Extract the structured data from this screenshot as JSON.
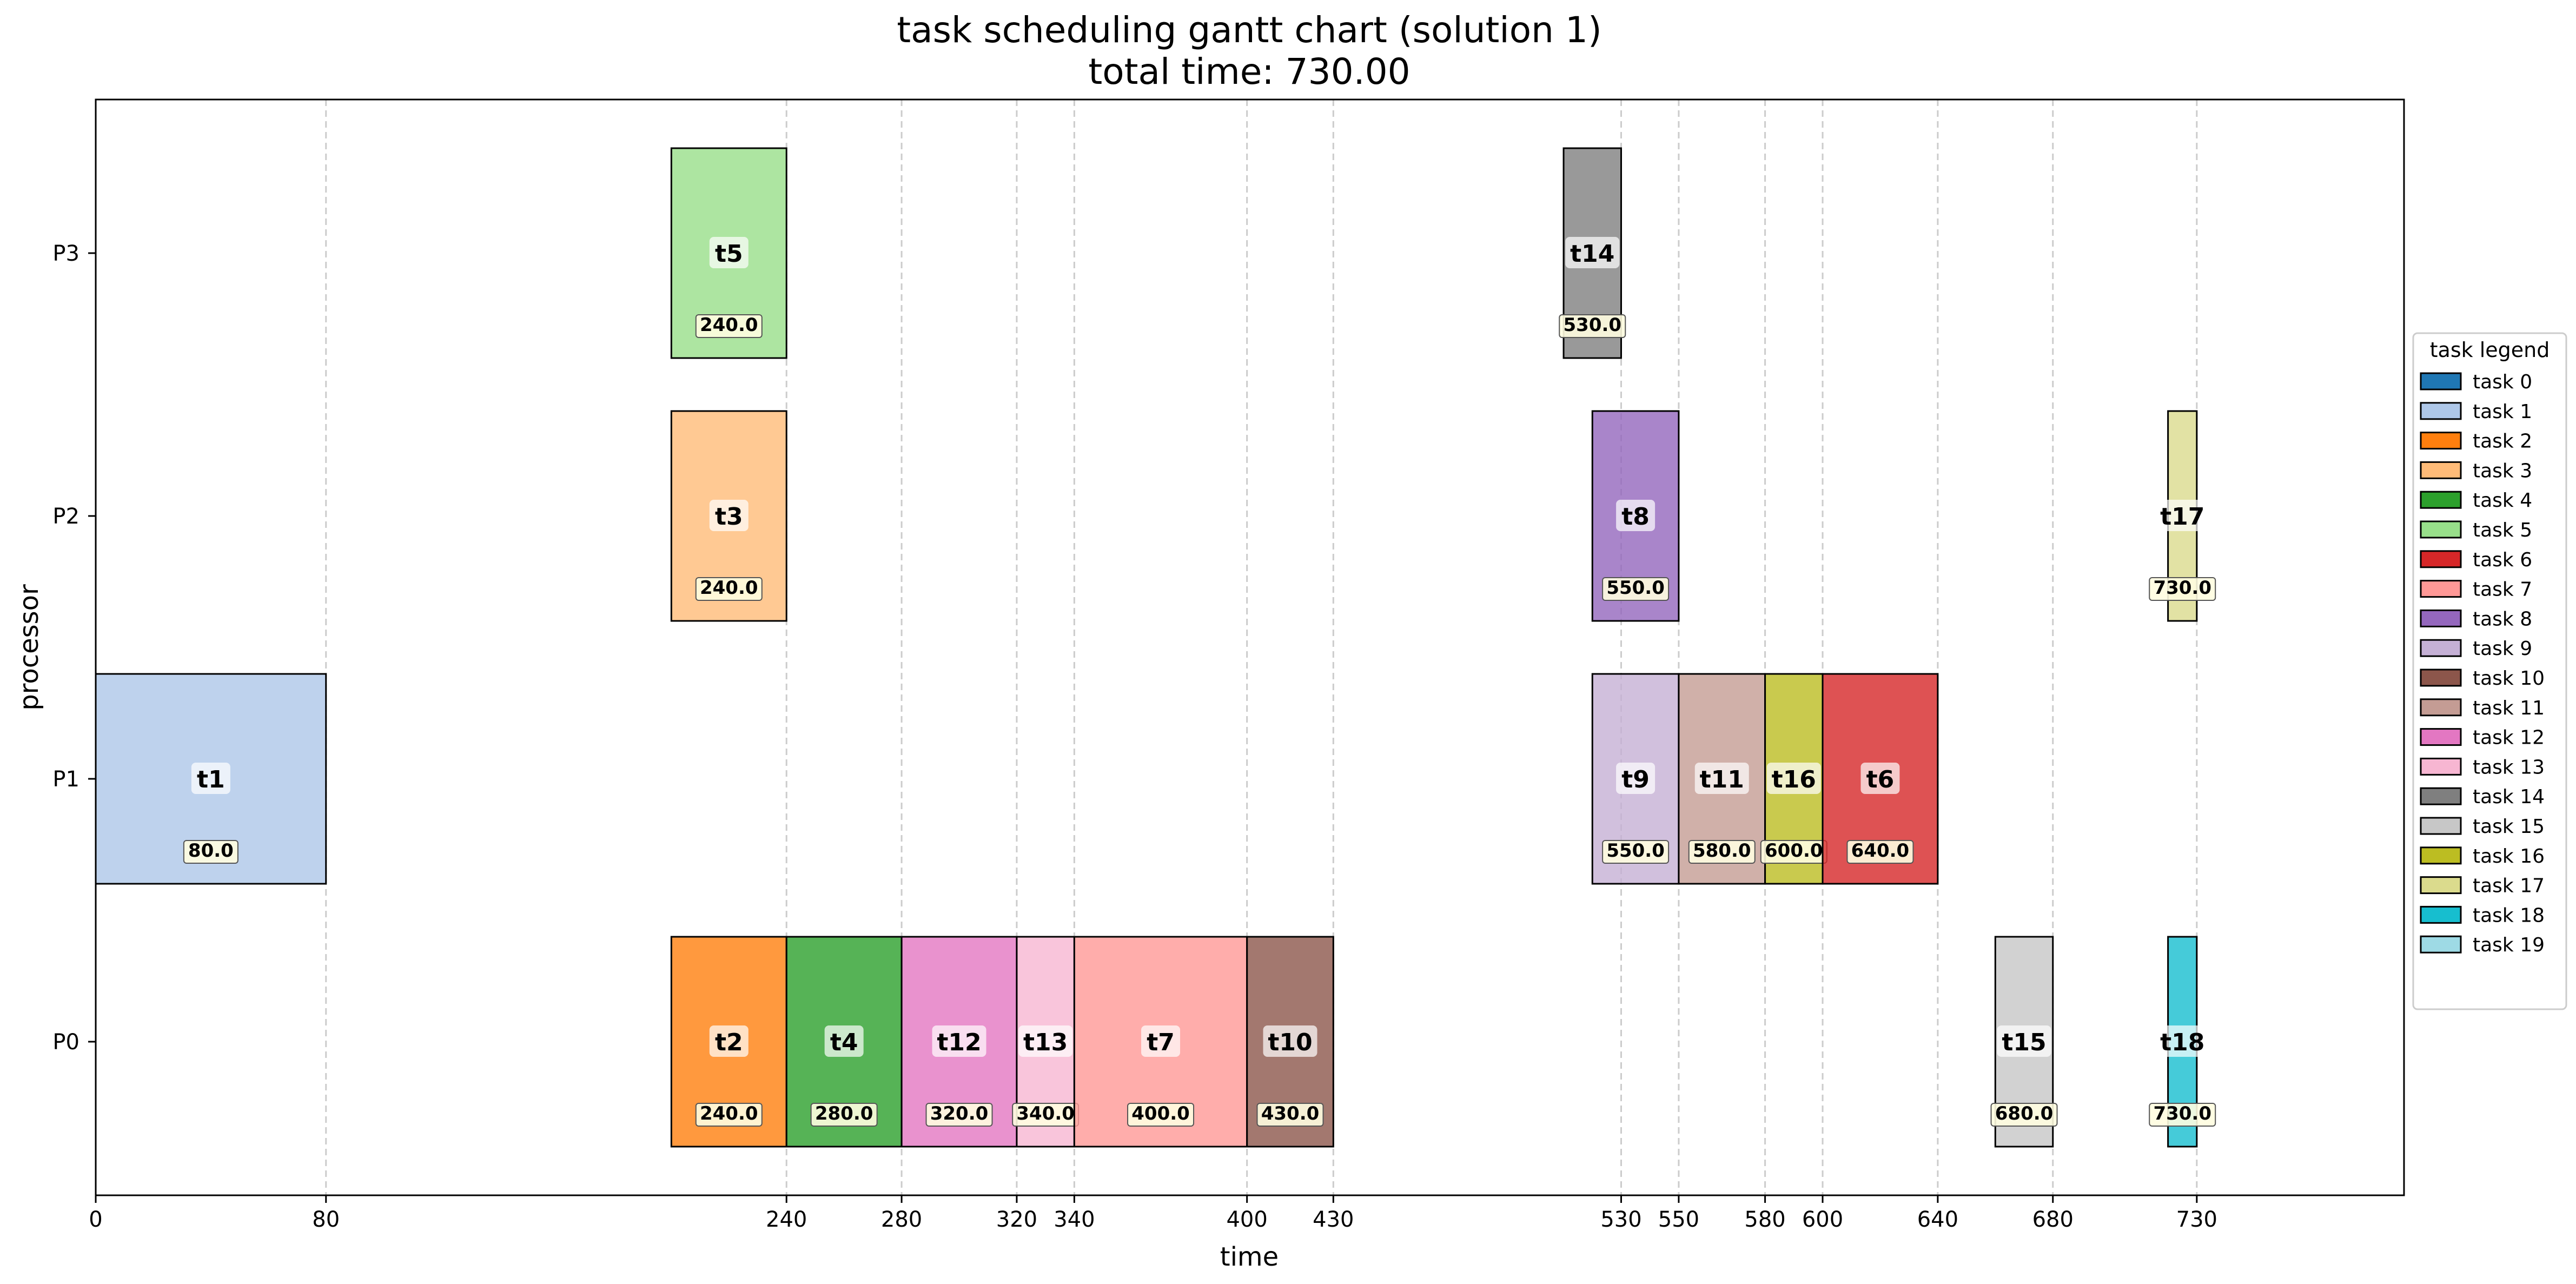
{
  "chart_data": {
    "type": "gantt",
    "title": "task scheduling gantt chart (solution 1)",
    "subtitle": "total time: 730.00",
    "xlabel": "time",
    "ylabel": "processor",
    "xlim": [
      0,
      802
    ],
    "processors": [
      "P0",
      "P1",
      "P2",
      "P3"
    ],
    "xticks": [
      "0",
      "80",
      "240",
      "280",
      "320",
      "340",
      "400",
      "430",
      "530",
      "550",
      "580",
      "600",
      "640",
      "680",
      "730"
    ],
    "tasks": [
      {
        "label": "t1",
        "task": 1,
        "processor": "P1",
        "start": 0,
        "end": 80,
        "end_label": "80.0"
      },
      {
        "label": "t2",
        "task": 2,
        "processor": "P0",
        "start": 200,
        "end": 240,
        "end_label": "240.0"
      },
      {
        "label": "t3",
        "task": 3,
        "processor": "P2",
        "start": 200,
        "end": 240,
        "end_label": "240.0"
      },
      {
        "label": "t5",
        "task": 5,
        "processor": "P3",
        "start": 200,
        "end": 240,
        "end_label": "240.0"
      },
      {
        "label": "t4",
        "task": 4,
        "processor": "P0",
        "start": 240,
        "end": 280,
        "end_label": "280.0"
      },
      {
        "label": "t12",
        "task": 12,
        "processor": "P0",
        "start": 280,
        "end": 320,
        "end_label": "320.0"
      },
      {
        "label": "t13",
        "task": 13,
        "processor": "P0",
        "start": 320,
        "end": 340,
        "end_label": "340.0"
      },
      {
        "label": "t7",
        "task": 7,
        "processor": "P0",
        "start": 340,
        "end": 400,
        "end_label": "400.0"
      },
      {
        "label": "t10",
        "task": 10,
        "processor": "P0",
        "start": 400,
        "end": 430,
        "end_label": "430.0"
      },
      {
        "label": "t14",
        "task": 14,
        "processor": "P3",
        "start": 510,
        "end": 530,
        "end_label": "530.0"
      },
      {
        "label": "t8",
        "task": 8,
        "processor": "P2",
        "start": 520,
        "end": 550,
        "end_label": "550.0"
      },
      {
        "label": "t9",
        "task": 9,
        "processor": "P1",
        "start": 520,
        "end": 550,
        "end_label": "550.0"
      },
      {
        "label": "t11",
        "task": 11,
        "processor": "P1",
        "start": 550,
        "end": 580,
        "end_label": "580.0"
      },
      {
        "label": "t16",
        "task": 16,
        "processor": "P1",
        "start": 580,
        "end": 600,
        "end_label": "600.0"
      },
      {
        "label": "t6",
        "task": 6,
        "processor": "P1",
        "start": 600,
        "end": 640,
        "end_label": "640.0"
      },
      {
        "label": "t15",
        "task": 15,
        "processor": "P0",
        "start": 660,
        "end": 680,
        "end_label": "680.0"
      },
      {
        "label": "t17",
        "task": 17,
        "processor": "P2",
        "start": 720,
        "end": 730,
        "end_label": "730.0"
      },
      {
        "label": "t18",
        "task": 18,
        "processor": "P0",
        "start": 720,
        "end": 730,
        "end_label": "730.0"
      }
    ],
    "legend": {
      "title": "task legend",
      "placement": "right",
      "entries": [
        {
          "label": "task 0",
          "color": "#1f77b4"
        },
        {
          "label": "task 1",
          "color": "#aec7e8"
        },
        {
          "label": "task 2",
          "color": "#ff7f0e"
        },
        {
          "label": "task 3",
          "color": "#ffbb78"
        },
        {
          "label": "task 4",
          "color": "#2ca02c"
        },
        {
          "label": "task 5",
          "color": "#98df8a"
        },
        {
          "label": "task 6",
          "color": "#d62728"
        },
        {
          "label": "task 7",
          "color": "#ff9896"
        },
        {
          "label": "task 8",
          "color": "#9467bd"
        },
        {
          "label": "task 9",
          "color": "#c5b0d5"
        },
        {
          "label": "task 10",
          "color": "#8c564b"
        },
        {
          "label": "task 11",
          "color": "#c49c94"
        },
        {
          "label": "task 12",
          "color": "#e377c2"
        },
        {
          "label": "task 13",
          "color": "#f7b6d2"
        },
        {
          "label": "task 14",
          "color": "#7f7f7f"
        },
        {
          "label": "task 15",
          "color": "#c7c7c7"
        },
        {
          "label": "task 16",
          "color": "#bcbd22"
        },
        {
          "label": "task 17",
          "color": "#dbdb8d"
        },
        {
          "label": "task 18",
          "color": "#17becf"
        },
        {
          "label": "task 19",
          "color": "#9edae5"
        }
      ]
    },
    "grid": "vertical dashed at task end times",
    "colors": {
      "bar_edge": "#000000",
      "grid": "#cccccc",
      "label_box": "#fffde0"
    }
  }
}
